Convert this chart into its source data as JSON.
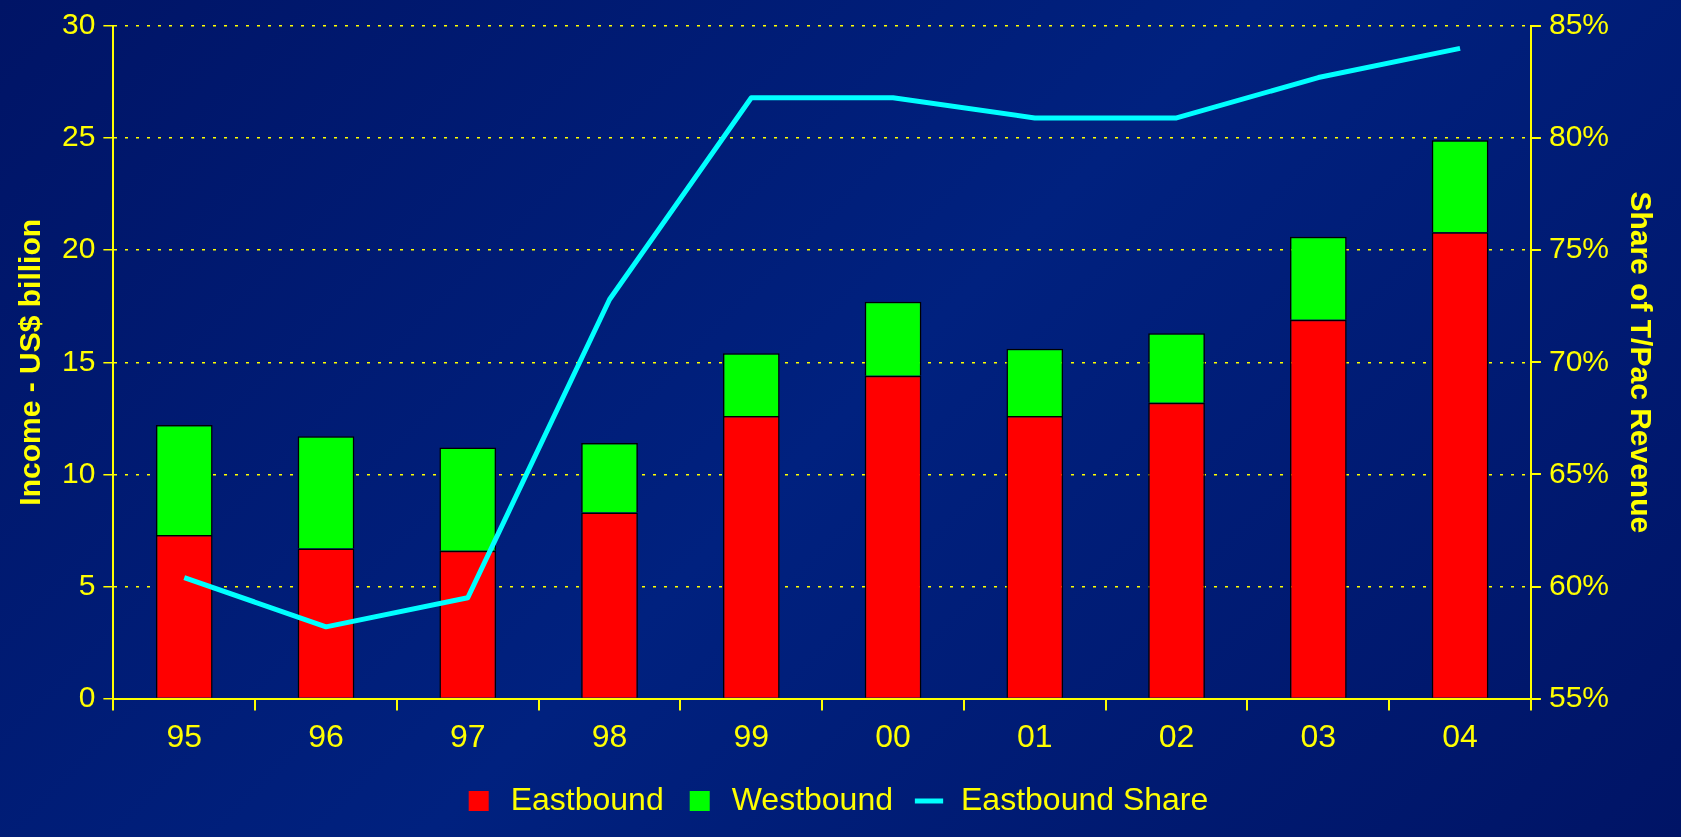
{
  "chart_data": {
    "type": "bar",
    "stacked": true,
    "ylabel": "Income - US$ billion",
    "y2label": "Share of T/Pac Revenue",
    "categories": [
      "95",
      "96",
      "97",
      "98",
      "99",
      "00",
      "01",
      "02",
      "03",
      "04"
    ],
    "series": [
      {
        "name": "Eastbound",
        "color": "#ff0000",
        "values": [
          7.3,
          6.7,
          6.6,
          8.3,
          12.6,
          14.4,
          12.6,
          13.2,
          16.9,
          20.8
        ]
      },
      {
        "name": "Westbound",
        "color": "#00ff00",
        "values": [
          4.9,
          5.0,
          4.6,
          3.1,
          2.8,
          3.3,
          3.0,
          3.1,
          3.7,
          4.1
        ]
      },
      {
        "name": "Eastbound Share",
        "type": "line",
        "axis": "y2",
        "color": "#00ffff",
        "values": [
          60.4,
          58.2,
          59.5,
          72.8,
          81.8,
          81.8,
          80.9,
          80.9,
          82.7,
          84.0
        ]
      }
    ],
    "ylim": [
      0,
      30
    ],
    "yticks": [
      0,
      5,
      10,
      15,
      20,
      25,
      30
    ],
    "y2lim": [
      55,
      85
    ],
    "y2ticks": [
      {
        "value": 55,
        "label": "55%"
      },
      {
        "value": 60,
        "label": "60%"
      },
      {
        "value": 65,
        "label": "65%"
      },
      {
        "value": 70,
        "label": "70%"
      },
      {
        "value": 75,
        "label": "75%"
      },
      {
        "value": 80,
        "label": "80%"
      },
      {
        "value": 85,
        "label": "85%"
      }
    ],
    "grid": "y",
    "legend": "bottom",
    "marker": "none"
  }
}
